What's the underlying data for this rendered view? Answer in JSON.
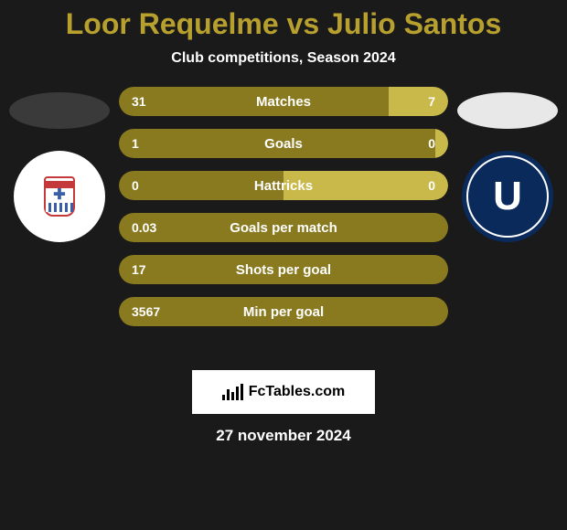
{
  "title_color": "#b8a02e",
  "title": "Loor Requelme vs Julio Santos",
  "subtitle": "Club competitions, Season 2024",
  "player_left": {
    "avatar_color": "#3a3a3a",
    "club_badge_bg": "#ffffff"
  },
  "player_right": {
    "avatar_color": "#e8e8e8",
    "club_badge_bg": "#0a2a5c",
    "club_letter": "U"
  },
  "bar_colors": {
    "left": "#8a7a1f",
    "right": "#c9b84a"
  },
  "stats": [
    {
      "label": "Matches",
      "left_value": "31",
      "right_value": "7",
      "left_pct": 82,
      "right_pct": 18
    },
    {
      "label": "Goals",
      "left_value": "1",
      "right_value": "0",
      "left_pct": 98,
      "right_pct": 2
    },
    {
      "label": "Hattricks",
      "left_value": "0",
      "right_value": "0",
      "left_pct": 50,
      "right_pct": 50
    },
    {
      "label": "Goals per match",
      "left_value": "0.03",
      "right_value": "",
      "left_pct": 100,
      "right_pct": 0
    },
    {
      "label": "Shots per goal",
      "left_value": "17",
      "right_value": "",
      "left_pct": 100,
      "right_pct": 0
    },
    {
      "label": "Min per goal",
      "left_value": "3567",
      "right_value": "",
      "left_pct": 100,
      "right_pct": 0
    }
  ],
  "footer_brand": "FcTables.com",
  "date": "27 november 2024"
}
